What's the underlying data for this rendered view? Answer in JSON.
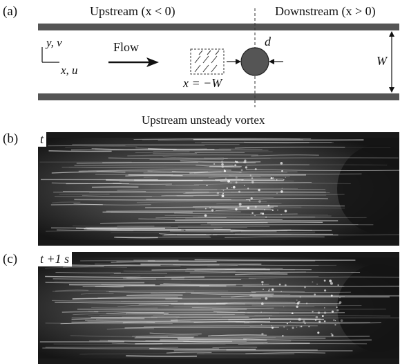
{
  "figure": {
    "panel_a": {
      "label": "(a)",
      "upstream_label": "Upstream (x < 0)",
      "downstream_label": "Downstream (x > 0)",
      "axes_y": "y, v",
      "axes_x": "x, u",
      "flow_label": "Flow",
      "position_label": "x = −W",
      "diameter_label": "d",
      "width_label": "W"
    },
    "caption_bc": "Upstream unsteady vortex",
    "panel_b": {
      "label": "(b)",
      "time": "t"
    },
    "panel_c": {
      "label": "(c)",
      "time": "t +1 s"
    },
    "colors": {
      "wall": "#555555",
      "cylinder": "#555555",
      "photo_dark": "#151515",
      "streak": "#e8e8e8"
    }
  }
}
